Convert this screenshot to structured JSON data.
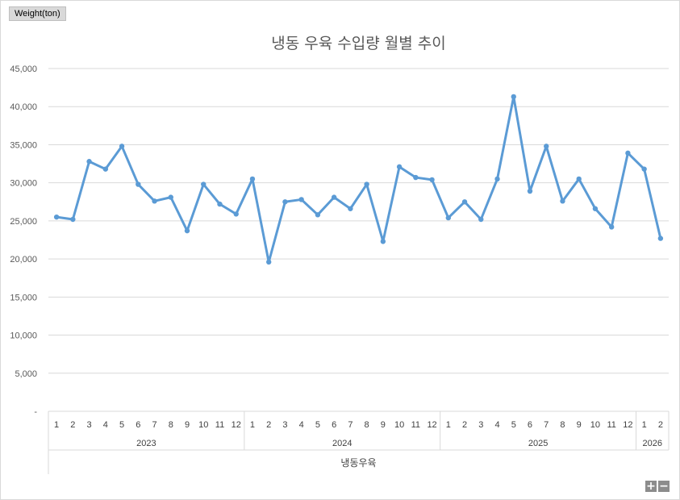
{
  "field_button": "Weight(ton)",
  "zoom": {
    "plus": "+",
    "minus": "−"
  },
  "colors": {
    "line": "#5b9bd5",
    "grid": "#d9d9d9",
    "text": "#595959"
  },
  "chart_data": {
    "type": "line",
    "title": "냉동 우육 수입량 월별 추이",
    "xlabel": "냉동우육",
    "ylabel": "",
    "ylim": [
      0,
      45000
    ],
    "yticks": [
      0,
      5000,
      10000,
      15000,
      20000,
      25000,
      30000,
      35000,
      40000,
      45000
    ],
    "ytick_labels": [
      "-",
      "5,000",
      "10,000",
      "15,000",
      "20,000",
      "25,000",
      "30,000",
      "35,000",
      "40,000",
      "45,000"
    ],
    "grid": true,
    "legend": "none",
    "groups": [
      {
        "label": "2023",
        "months": [
          "1",
          "2",
          "3",
          "4",
          "5",
          "6",
          "7",
          "8",
          "9",
          "10",
          "11",
          "12"
        ]
      },
      {
        "label": "2024",
        "months": [
          "1",
          "2",
          "3",
          "4",
          "5",
          "6",
          "7",
          "8",
          "9",
          "10",
          "11",
          "12"
        ]
      },
      {
        "label": "2025",
        "months": [
          "1",
          "2",
          "3",
          "4",
          "5",
          "6",
          "7",
          "8",
          "9",
          "10",
          "11",
          "12"
        ]
      },
      {
        "label": "2026",
        "months": [
          "1",
          "2"
        ]
      }
    ],
    "series": [
      {
        "values": [
          25500,
          25200,
          32800,
          31800,
          34800,
          29800,
          27600,
          28100,
          23700,
          29800,
          27200,
          25900,
          30500,
          19600,
          27500,
          27800,
          25800,
          28100,
          26600,
          29800,
          22300,
          32100,
          30700,
          30400,
          25400,
          27500,
          25200,
          30500,
          41300,
          28900,
          34800,
          27600,
          30500,
          26600,
          24200,
          33900,
          31800,
          22700
        ]
      }
    ]
  }
}
